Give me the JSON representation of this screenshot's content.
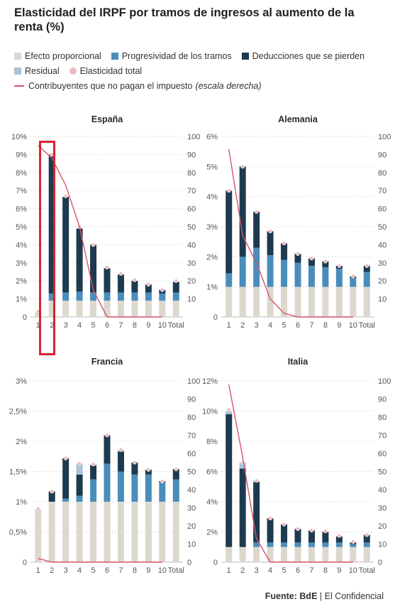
{
  "title": "Elasticidad del IRPF por tramos de ingresos al aumento de la renta (%)",
  "legend": {
    "items": [
      {
        "label": "Efecto proporcional",
        "color": "#dcd8ce"
      },
      {
        "label": "Progresividad de los tramos",
        "color": "#4a8dbb"
      },
      {
        "label": "Deducciones que se pierden",
        "color": "#1e3a4f"
      },
      {
        "label": "Residual",
        "color": "#a9c3d9"
      },
      {
        "label": "Elasticidad total",
        "color": "#f2b8be"
      }
    ],
    "line_label": "Contribuyentes que no pagan el impuesto",
    "line_note": "(escala derecha)",
    "line_color": "#d9536a"
  },
  "source_label": "Fuente:",
  "source_value": "BdE",
  "source_rest": "| El Confidencial",
  "chart_data": [
    {
      "type": "bar",
      "title": "España",
      "categories": [
        "1",
        "2",
        "3",
        "4",
        "5",
        "6",
        "7",
        "8",
        "9",
        "10",
        "Total"
      ],
      "ylim": [
        0,
        10
      ],
      "y_ticks": [
        "0",
        "1%",
        "2%",
        "3%",
        "4%",
        "5%",
        "6%",
        "7%",
        "8%",
        "9%",
        "10%"
      ],
      "y2lim": [
        0,
        100
      ],
      "y2_ticks": [
        "",
        "10",
        "20",
        "30",
        "40",
        "50",
        "60",
        "70",
        "80",
        "90",
        "100"
      ],
      "series": [
        {
          "name": "Efecto proporcional",
          "values": [
            0.25,
            0.9,
            0.9,
            0.9,
            0.9,
            0.9,
            0.9,
            0.9,
            0.9,
            0.9,
            0.9
          ]
        },
        {
          "name": "Progresividad de los tramos",
          "values": [
            0,
            0.4,
            0.45,
            0.5,
            0.45,
            0.45,
            0.45,
            0.45,
            0.45,
            0.4,
            0.45
          ]
        },
        {
          "name": "Deducciones que se pierden",
          "values": [
            0,
            7.7,
            5.3,
            3.5,
            2.65,
            1.35,
            1.0,
            0.65,
            0.45,
            0.2,
            0.6
          ]
        },
        {
          "name": "Residual",
          "values": [
            0,
            0,
            0,
            0,
            0,
            0,
            0,
            0,
            0,
            0,
            0
          ]
        }
      ],
      "total": [
        0.3,
        9.0,
        6.7,
        5.0,
        4.0,
        2.75,
        2.4,
        2.05,
        1.8,
        1.5,
        2.0
      ],
      "line": [
        95,
        88,
        73,
        50,
        15,
        0,
        0,
        0,
        0,
        0,
        null
      ]
    },
    {
      "type": "bar",
      "title": "Alemania",
      "categories": [
        "1",
        "2",
        "3",
        "4",
        "5",
        "6",
        "7",
        "8",
        "9",
        "10",
        "Total"
      ],
      "ylim": [
        0,
        6
      ],
      "y_ticks": [
        "0",
        "1%",
        "2%",
        "3%",
        "4%",
        "5%",
        "6%"
      ],
      "y2lim": [
        0,
        100
      ],
      "y2_ticks": [
        "",
        "10",
        "20",
        "30",
        "40",
        "50",
        "60",
        "70",
        "80",
        "90",
        "100"
      ],
      "series": [
        {
          "name": "Efecto proporcional",
          "values": [
            1,
            1,
            1,
            1,
            1,
            1,
            1,
            1,
            1,
            1,
            1
          ]
        },
        {
          "name": "Progresividad de los tramos",
          "values": [
            0.45,
            1.0,
            1.3,
            1.05,
            0.9,
            0.8,
            0.7,
            0.65,
            0.6,
            0.3,
            0.5
          ]
        },
        {
          "name": "Deducciones que se pierden",
          "values": [
            2.75,
            3.0,
            1.2,
            0.8,
            0.55,
            0.3,
            0.25,
            0.2,
            0.1,
            0.05,
            0.2
          ]
        },
        {
          "name": "Residual",
          "values": [
            0,
            0,
            0,
            0,
            0,
            0,
            0,
            0,
            0,
            0,
            0
          ]
        }
      ],
      "total": [
        4.2,
        5.0,
        3.5,
        2.85,
        2.45,
        2.1,
        1.95,
        1.85,
        1.7,
        1.35,
        1.7
      ],
      "line": [
        93,
        45,
        30,
        10,
        2,
        0,
        0,
        0,
        0,
        0,
        null
      ]
    },
    {
      "type": "bar",
      "title": "Francia",
      "categories": [
        "1",
        "2",
        "3",
        "4",
        "5",
        "6",
        "7",
        "8",
        "9",
        "10",
        "Total"
      ],
      "ylim": [
        0,
        3
      ],
      "y_ticks": [
        "0",
        "0,5%",
        "1%",
        "1,5%",
        "2%",
        "2,5%",
        "3%"
      ],
      "y2lim": [
        0,
        100
      ],
      "y2_ticks": [
        "0",
        "10",
        "20",
        "30",
        "40",
        "50",
        "60",
        "70",
        "80",
        "90",
        "100"
      ],
      "series": [
        {
          "name": "Efecto proporcional",
          "values": [
            0.88,
            1,
            1,
            1,
            1,
            1,
            1,
            1,
            1,
            1,
            1
          ]
        },
        {
          "name": "Progresividad de los tramos",
          "values": [
            0,
            0,
            0.05,
            0.1,
            0.37,
            0.63,
            0.5,
            0.45,
            0.45,
            0.32,
            0.37
          ]
        },
        {
          "name": "Deducciones que se pierden",
          "values": [
            0,
            0.17,
            0.67,
            0.35,
            0.23,
            0.47,
            0.33,
            0.2,
            0.08,
            0.02,
            0.17
          ]
        },
        {
          "name": "Residual",
          "values": [
            0,
            0,
            0,
            0.18,
            0.02,
            0,
            0.03,
            0,
            0,
            0,
            0
          ]
        }
      ],
      "total": [
        0.88,
        1.17,
        1.72,
        1.63,
        1.62,
        2.1,
        1.86,
        1.65,
        1.53,
        1.34,
        1.54
      ],
      "line": [
        2,
        0,
        0,
        0,
        0,
        0,
        0,
        0,
        0,
        0,
        null
      ]
    },
    {
      "type": "bar",
      "title": "Italia",
      "categories": [
        "1",
        "2",
        "3",
        "4",
        "5",
        "6",
        "7",
        "8",
        "9",
        "10",
        "Total"
      ],
      "ylim": [
        0,
        12
      ],
      "y_ticks": [
        "0",
        "2%",
        "4%",
        "6%",
        "8%",
        "10%",
        "12%"
      ],
      "y2lim": [
        0,
        100
      ],
      "y2_ticks": [
        "0",
        "10",
        "20",
        "30",
        "40",
        "50",
        "60",
        "70",
        "80",
        "90",
        "100"
      ],
      "series": [
        {
          "name": "Efecto proporcional",
          "values": [
            1,
            1,
            1,
            1,
            1,
            1,
            1,
            1,
            1,
            1,
            1
          ]
        },
        {
          "name": "Progresividad de los tramos",
          "values": [
            0,
            0,
            0.3,
            0.3,
            0.3,
            0.3,
            0.3,
            0.3,
            0.3,
            0.2,
            0.3
          ]
        },
        {
          "name": "Deducciones que se pierden",
          "values": [
            8.8,
            5.2,
            4.0,
            1.6,
            1.2,
            0.9,
            0.8,
            0.7,
            0.4,
            0.1,
            0.5
          ]
        },
        {
          "name": "Residual",
          "values": [
            0.2,
            0.4,
            0.1,
            0,
            0,
            0,
            0,
            0,
            0,
            0,
            0
          ]
        }
      ],
      "total": [
        10.1,
        6.6,
        5.4,
        2.9,
        2.5,
        2.2,
        2.1,
        2.05,
        1.75,
        1.35,
        1.8
      ],
      "line": [
        98,
        58,
        13,
        0,
        0,
        0,
        0,
        0,
        0,
        0,
        null
      ]
    }
  ]
}
